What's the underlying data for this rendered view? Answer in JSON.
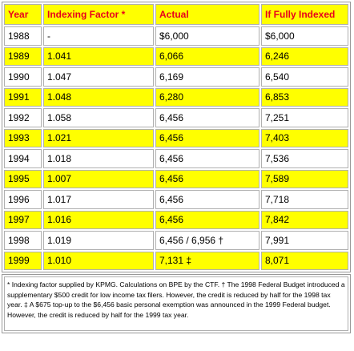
{
  "table": {
    "header": [
      "Year",
      "Indexing Factor *",
      "Actual",
      "If Fully Indexed"
    ],
    "rows": [
      [
        "1988",
        "-",
        "$6,000",
        "$6,000"
      ],
      [
        "1989",
        "1.041",
        "6,066",
        "6,246"
      ],
      [
        "1990",
        "1.047",
        "6,169",
        "6,540"
      ],
      [
        "1991",
        "1.048",
        "6,280",
        "6,853"
      ],
      [
        "1992",
        "1.058",
        "6,456",
        "7,251"
      ],
      [
        "1993",
        "1.021",
        "6,456",
        "7,403"
      ],
      [
        "1994",
        "1.018",
        "6,456",
        "7,536"
      ],
      [
        "1995",
        "1.007",
        "6,456",
        "7,589"
      ],
      [
        "1996",
        "1.017",
        "6,456",
        "7,718"
      ],
      [
        "1997",
        "1.016",
        "6,456",
        "7,842"
      ],
      [
        "1998",
        "1.019",
        "6,456 / 6,956 †",
        "7,991"
      ],
      [
        "1999",
        "1.010",
        "7,131 ‡",
        "8,071"
      ]
    ],
    "footnote": "* Indexing factor supplied by KPMG. Calculations on BPE by the CTF. † The 1998 Federal Budget introduced a supplementary $500 credit for low income tax filers. However, the credit is reduced by half for the 1998 tax year. ‡ A $675 top-up to the $6,456 basic personal exemption was announced in the 1999 Federal budget. However, the credit is reduced by half for the 1999 tax year."
  }
}
